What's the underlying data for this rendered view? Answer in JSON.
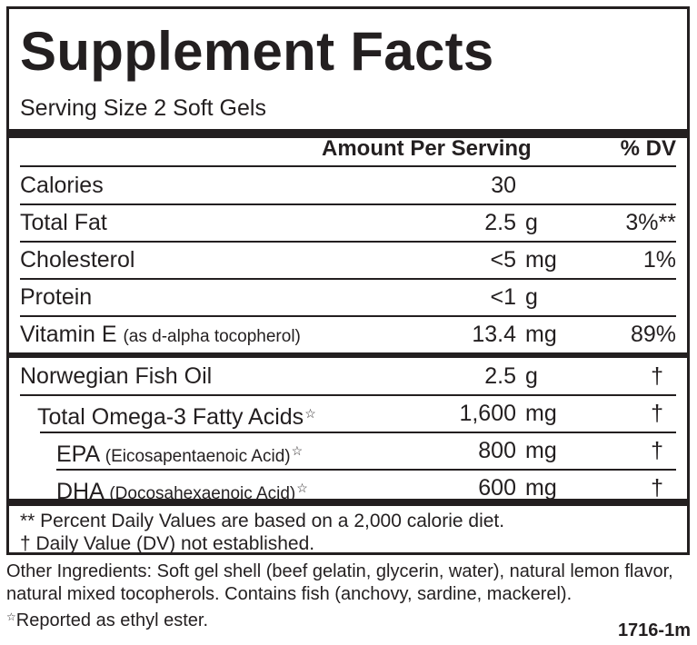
{
  "title": "Supplement Facts",
  "serving_size": "Serving Size 2 Soft Gels",
  "header": {
    "amount": "Amount Per Serving",
    "dv": "% DV"
  },
  "nutrients": [
    {
      "name": "Calories",
      "detail": "",
      "amount": "30",
      "unit": "",
      "dv": ""
    },
    {
      "name": "Total Fat",
      "detail": "",
      "amount": "2.5",
      "unit": "g",
      "dv": "3%**"
    },
    {
      "name": "Cholesterol",
      "detail": "",
      "amount": "<5",
      "unit": "mg",
      "dv": "1%"
    },
    {
      "name": "Protein",
      "detail": "",
      "amount": "<1",
      "unit": "g",
      "dv": ""
    },
    {
      "name": "Vitamin E",
      "detail": "(as d-alpha tocopherol)",
      "amount": "13.4",
      "unit": "mg",
      "dv": "89%"
    }
  ],
  "fish_oil": [
    {
      "name": "Norwegian Fish Oil",
      "detail": "",
      "star": "",
      "amount": "2.5",
      "unit": "g",
      "dv": "†"
    },
    {
      "name": "Total Omega-3 Fatty Acids",
      "detail": "",
      "star": "☆",
      "amount": "1,600",
      "unit": "mg",
      "dv": "†"
    },
    {
      "name": "EPA",
      "detail": "(Eicosapentaenoic Acid)",
      "star": "☆",
      "amount": "800",
      "unit": "mg",
      "dv": "†"
    },
    {
      "name": "DHA",
      "detail": "(Docosahexaenoic Acid)",
      "star": "☆",
      "amount": "600",
      "unit": "mg",
      "dv": "†"
    }
  ],
  "footnotes": [
    "** Percent Daily Values are based on a 2,000 calorie diet.",
    "† Daily Value (DV) not established."
  ],
  "other_ingredients": "Other Ingredients: Soft gel shell (beef gelatin, glycerin, water), natural lemon flavor, natural mixed tocopherols. Contains fish (anchovy, sardine, mackerel).",
  "star_note": {
    "symbol": "☆",
    "text": "Reported as ethyl ester."
  },
  "code": "1716-1m"
}
